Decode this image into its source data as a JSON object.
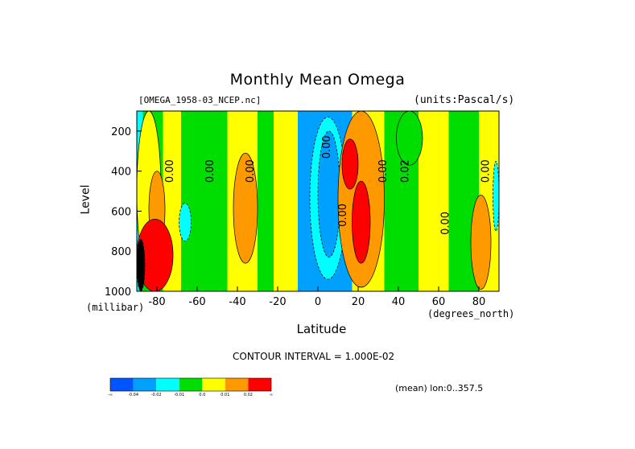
{
  "chart_data": {
    "type": "heatmap",
    "title": "Monthly Mean Omega",
    "file_label": "[OMEGA_1958-03_NCEP.nc]",
    "units_label": "(units:Pascal/s)",
    "xlabel": "Latitude",
    "x_units": "(degrees_north)",
    "ylabel": "Level",
    "y_units": "(millibar)",
    "xlim": [
      -90,
      90
    ],
    "ylim": [
      1000,
      100
    ],
    "y_scale": "linear, inverted (pressure)",
    "x_ticks": [
      -80,
      -60,
      -40,
      -20,
      0,
      20,
      40,
      60,
      80
    ],
    "y_ticks": [
      200,
      400,
      600,
      800,
      1000
    ],
    "contour_interval_text": "CONTOUR INTERVAL = 1.000E-02",
    "contour_labels": [
      "0.00",
      "0.00",
      "0.00",
      "0.00",
      "0.00",
      "0.00",
      "0.02",
      "0.00",
      "0.00"
    ],
    "averaging_note": "(mean) lon:0..357.5",
    "colorbar": {
      "colors": [
        "#0055ff",
        "#00a0ff",
        "#00ffff",
        "#00dd00",
        "#ffff00",
        "#ff9900",
        "#ff0000"
      ],
      "labels": [
        "-∞",
        "-0.04",
        "-0.02",
        "-0.01",
        "0.0",
        "0.01",
        "0.02",
        "∞"
      ]
    },
    "bands": [
      {
        "lat": [
          -90,
          -87
        ],
        "level": 2
      },
      {
        "lat": [
          -87,
          -77
        ],
        "level": 3
      },
      {
        "lat": [
          -77,
          -68
        ],
        "level": 4
      },
      {
        "lat": [
          -68,
          -45
        ],
        "level": 3
      },
      {
        "lat": [
          -45,
          -30
        ],
        "level": 4
      },
      {
        "lat": [
          -30,
          -22
        ],
        "level": 3
      },
      {
        "lat": [
          -22,
          -10
        ],
        "level": 4
      },
      {
        "lat": [
          -10,
          17
        ],
        "level": 1
      },
      {
        "lat": [
          17,
          33
        ],
        "level": 4
      },
      {
        "lat": [
          33,
          50
        ],
        "level": 3
      },
      {
        "lat": [
          50,
          65
        ],
        "level": 4
      },
      {
        "lat": [
          65,
          80
        ],
        "level": 3
      },
      {
        "lat": [
          80,
          90
        ],
        "level": 4
      }
    ],
    "features": [
      {
        "level": 4,
        "lat": [
          -90,
          -78
        ],
        "p": [
          900,
          100
        ]
      },
      {
        "level": 5,
        "lat": [
          -84,
          -76
        ],
        "p": [
          400,
          780
        ]
      },
      {
        "level": 6,
        "lat": [
          -90,
          -72
        ],
        "p": [
          640,
          1000
        ]
      },
      {
        "level": 2,
        "lat": [
          -69,
          -63
        ],
        "p": [
          560,
          750
        ]
      },
      {
        "level": 5,
        "lat": [
          -42,
          -30
        ],
        "p": [
          310,
          860
        ]
      },
      {
        "level": 2,
        "lat": [
          -4,
          14
        ],
        "p": [
          130,
          940
        ]
      },
      {
        "level": 1,
        "lat": [
          0,
          11
        ],
        "p": [
          200,
          830
        ]
      },
      {
        "level": 5,
        "lat": [
          10,
          33
        ],
        "p": [
          100,
          980
        ]
      },
      {
        "level": 6,
        "lat": [
          12,
          20
        ],
        "p": [
          240,
          490
        ]
      },
      {
        "level": 6,
        "lat": [
          17,
          26
        ],
        "p": [
          450,
          860
        ]
      },
      {
        "level": 3,
        "lat": [
          39,
          52
        ],
        "p": [
          100,
          370
        ]
      },
      {
        "level": 5,
        "lat": [
          76,
          86
        ],
        "p": [
          520,
          990
        ]
      },
      {
        "level": 2,
        "lat": [
          87,
          90
        ],
        "p": [
          350,
          700
        ]
      },
      {
        "level": 1,
        "lat": [
          -90,
          -86
        ],
        "p": [
          740,
          1000
        ],
        "color": "#000000"
      }
    ]
  }
}
